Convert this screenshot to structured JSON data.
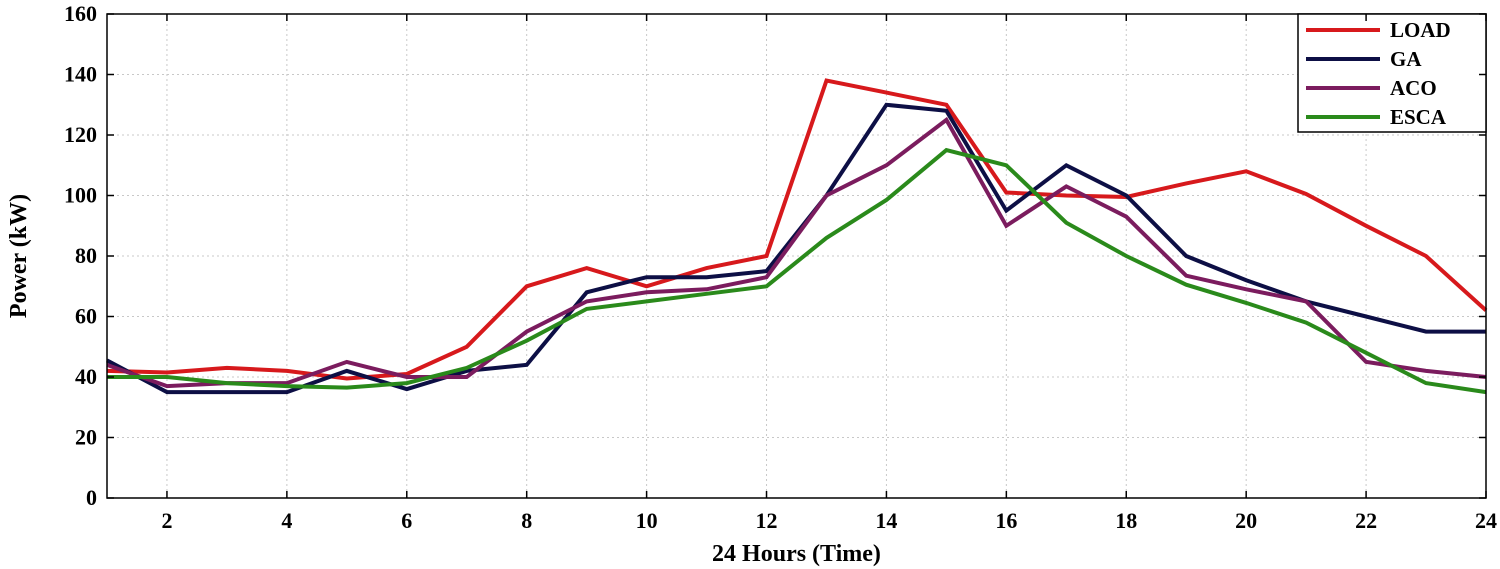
{
  "chart_data": {
    "type": "line",
    "title": "",
    "xlabel": "24 Hours (Time)",
    "ylabel": "Power (kW)",
    "xlim": [
      1,
      24
    ],
    "ylim": [
      0,
      160
    ],
    "xticks": [
      2,
      4,
      6,
      8,
      10,
      12,
      14,
      16,
      18,
      20,
      22,
      24
    ],
    "yticks": [
      0,
      20,
      40,
      60,
      80,
      100,
      120,
      140,
      160
    ],
    "grid": true,
    "legend_position": "top-right",
    "x": [
      1,
      2,
      3,
      4,
      5,
      6,
      7,
      8,
      9,
      10,
      11,
      12,
      13,
      14,
      15,
      16,
      17,
      18,
      19,
      20,
      21,
      22,
      23,
      24
    ],
    "series": [
      {
        "name": "LOAD",
        "color": "#d7191c",
        "values": [
          42,
          41.5,
          43,
          42,
          39.5,
          41,
          50,
          70,
          76,
          70,
          76,
          80,
          138,
          134,
          130,
          101,
          100,
          99.5,
          104,
          108,
          100.5,
          90,
          80,
          62
        ]
      },
      {
        "name": "GA",
        "color": "#0d0f45",
        "values": [
          45.5,
          35,
          35,
          35,
          42,
          36,
          42,
          44,
          68,
          73,
          73,
          75,
          100,
          130,
          128,
          95,
          110,
          100,
          80,
          72,
          65,
          60,
          55,
          55
        ]
      },
      {
        "name": "ACO",
        "color": "#7b1c5e",
        "values": [
          44,
          37,
          38,
          38,
          45,
          40,
          40,
          55,
          65,
          68,
          69,
          73,
          100,
          110,
          125,
          90,
          103,
          93,
          73.5,
          69,
          65,
          45,
          42,
          40
        ]
      },
      {
        "name": "ESCA",
        "color": "#2a8a1b",
        "values": [
          40,
          40,
          38,
          37,
          36.5,
          38,
          43,
          52,
          62.5,
          65,
          67.5,
          70,
          86,
          98.5,
          115,
          110,
          91,
          80,
          70.5,
          64.5,
          58,
          48,
          38,
          35
        ]
      }
    ]
  }
}
